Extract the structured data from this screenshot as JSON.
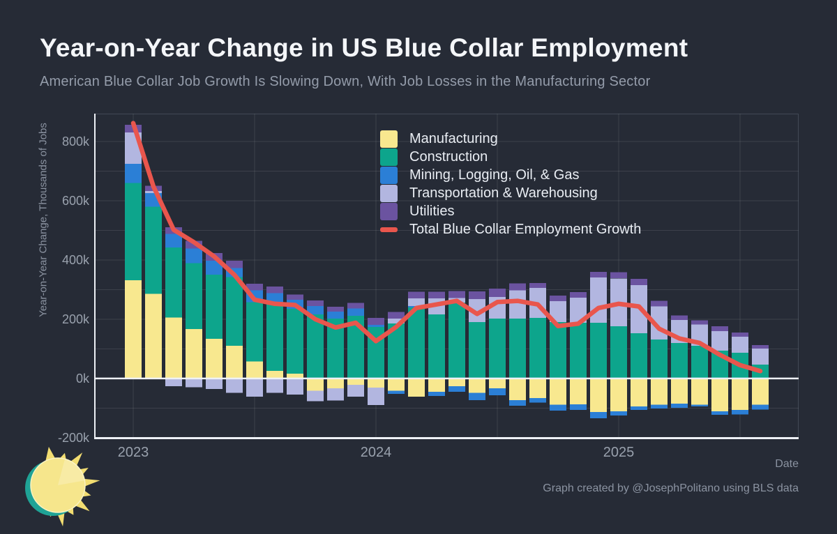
{
  "header": {
    "title": "Year-on-Year Change in US Blue Collar Employment",
    "subtitle": "American Blue Collar Job Growth Is Slowing Down, With Job Losses in the Manufacturing Sector"
  },
  "footer": {
    "attribution": "Graph created by @JosephPolitano using BLS data"
  },
  "chart_data": {
    "type": "bar",
    "stacked": true,
    "units": "thousands of jobs",
    "title": "Year-on-Year Change in US Blue Collar Employment",
    "ylabel": "Year-on-Year Change, Thousands of Jobs",
    "xlabel": "Date",
    "ylim": [
      -205,
      894
    ],
    "grid": "on",
    "legend_position": "top-left-inside",
    "background_color": "#262b36",
    "axis_color": "#eef1f6",
    "tick_color": "#99a1ad",
    "months": [
      "2023-01",
      "2023-02",
      "2023-03",
      "2023-04",
      "2023-05",
      "2023-06",
      "2023-07",
      "2023-08",
      "2023-09",
      "2023-10",
      "2023-11",
      "2023-12",
      "2024-01",
      "2024-02",
      "2024-03",
      "2024-04",
      "2024-05",
      "2024-06",
      "2024-07",
      "2024-08",
      "2024-09",
      "2024-10",
      "2024-11",
      "2024-12",
      "2025-01",
      "2025-02",
      "2025-03",
      "2025-04",
      "2025-05",
      "2025-06",
      "2025-07",
      "2025-08"
    ],
    "series": [
      {
        "name": "Manufacturing",
        "color": "#f8e88f",
        "values": [
          332,
          286,
          206,
          167,
          134,
          110,
          57,
          26,
          16,
          -42,
          -33,
          -21,
          -31,
          -42,
          -61,
          -45,
          -26,
          -49,
          -33,
          -73,
          -66,
          -89,
          -87,
          -113,
          -111,
          -94,
          -89,
          -85,
          -89,
          -111,
          -106,
          -89
        ]
      },
      {
        "name": "Construction",
        "color": "#0da58c",
        "values": [
          328,
          294,
          236,
          222,
          216,
          232,
          200,
          224,
          219,
          216,
          202,
          212,
          174,
          186,
          240,
          216,
          256,
          190,
          202,
          202,
          205,
          190,
          188,
          188,
          176,
          153,
          132,
          120,
          111,
          94,
          87,
          47
        ]
      },
      {
        "name": "Mining, Logging, Oil, & Gas",
        "color": "#2b7fd6",
        "values": [
          64,
          46,
          46,
          50,
          47,
          31,
          40,
          38,
          31,
          28,
          24,
          24,
          7,
          -10,
          4,
          -14,
          -19,
          -24,
          -24,
          -19,
          -16,
          -19,
          -19,
          -21,
          -14,
          -12,
          -12,
          -14,
          -5,
          -12,
          -16,
          -16
        ]
      },
      {
        "name": "Transportation & Warehousing",
        "color": "#b2b6e0",
        "values": [
          106,
          7,
          -26,
          -30,
          -36,
          -49,
          -61,
          -48,
          -54,
          -35,
          -42,
          -40,
          -59,
          16,
          26,
          54,
          16,
          78,
          73,
          96,
          101,
          71,
          85,
          153,
          162,
          162,
          111,
          77,
          71,
          66,
          54,
          54
        ]
      },
      {
        "name": "Utilities",
        "color": "#6b53a0",
        "values": [
          26,
          18,
          22,
          25,
          26,
          25,
          23,
          22,
          17,
          19,
          16,
          19,
          23,
          23,
          23,
          23,
          23,
          26,
          28,
          23,
          16,
          19,
          19,
          19,
          21,
          21,
          19,
          16,
          14,
          16,
          14,
          12
        ]
      }
    ],
    "line": {
      "name": "Total Blue Collar Employment Growth",
      "color": "#e9564d",
      "values": [
        862,
        648,
        502,
        460,
        412,
        350,
        266,
        252,
        248,
        200,
        172,
        188,
        126,
        174,
        238,
        250,
        262,
        218,
        258,
        262,
        250,
        177,
        185,
        238,
        252,
        243,
        168,
        135,
        120,
        80,
        45,
        25
      ]
    },
    "yticks": [
      {
        "v": -200,
        "label": "-200k"
      },
      {
        "v": 0,
        "label": "0k"
      },
      {
        "v": 200,
        "label": "200k"
      },
      {
        "v": 400,
        "label": "400k"
      },
      {
        "v": 600,
        "label": "600k"
      },
      {
        "v": 800,
        "label": "800k"
      }
    ],
    "ygrid_step": 100,
    "xticks": [
      {
        "month_index": 0,
        "label": "2023"
      },
      {
        "month_index": 12,
        "label": "2024"
      },
      {
        "month_index": 24,
        "label": "2025"
      }
    ],
    "xgrid_month_indices": [
      0,
      6,
      12,
      18,
      24,
      30
    ]
  }
}
